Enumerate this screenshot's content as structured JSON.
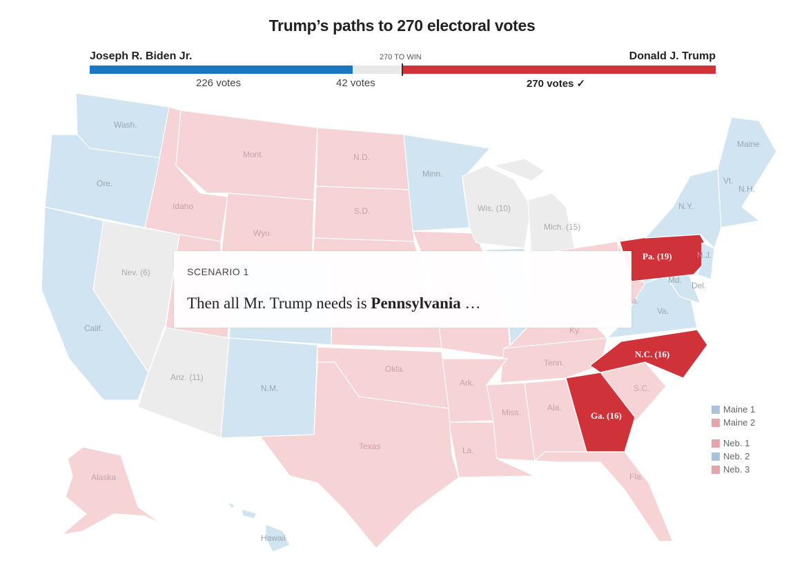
{
  "title": "Trump’s paths to 270 electoral votes",
  "bar": {
    "biden_name": "Joseph R. Biden Jr.",
    "trump_name": "Donald J. Trump",
    "win_label": "270 TO WIN",
    "biden_votes": "226 votes",
    "undecided_votes": "42 votes",
    "trump_votes": "270 votes ✓",
    "biden_count": 226,
    "undecided_count": 42,
    "trump_count": 270,
    "total": 538
  },
  "colors": {
    "biden": "#1a78c2",
    "trump": "#d0323a",
    "undecided": "#e8e8e8",
    "lean_biden": "#d0e4f1",
    "lean_trump": "#f6d4d6",
    "tossup": "#ececec",
    "selected": "#d0323a"
  },
  "card": {
    "label": "SCENARIO 1",
    "text_prefix": "Then all Mr. Trump needs is ",
    "text_bold": "Pennsylvania",
    "text_suffix": " …"
  },
  "states": {
    "wash": "Wash.",
    "ore": "Ore.",
    "calif": "Calif.",
    "nev": "Nev. (6)",
    "idaho": "Idaho",
    "mont": "Mont.",
    "wyo": "Wyo.",
    "nd": "N.D.",
    "sd": "S.D.",
    "minn": "Minn.",
    "wis": "Wis. (10)",
    "mich": "Mich. (15)",
    "maine": "Maine",
    "vt": "Vt.",
    "nh": "N.H.",
    "ny": "N.Y.",
    "pa": "Pa. (19)",
    "nj": "N.J.",
    "md": "Md.",
    "del": "Del.",
    "va": "Va.",
    "wva": "a.",
    "ky": "Ky.",
    "tenn": "Tenn.",
    "nc": "N.C. (16)",
    "sc": "S.C.",
    "ga": "Ga. (16)",
    "ala": "Ala.",
    "miss": "Miss.",
    "ark": "Ark.",
    "la": "La.",
    "texas": "Texas",
    "okla": "Okla.",
    "nm": "N.M.",
    "ariz": "Ariz. (11)",
    "fla": "Fla.",
    "alaska": "Alaska",
    "hawaii": "Hawaii"
  },
  "legend": [
    {
      "label": "Maine 1",
      "party": "biden"
    },
    {
      "label": "Maine 2",
      "party": "trump"
    },
    {
      "label": "Neb. 1",
      "party": "trump"
    },
    {
      "label": "Neb. 2",
      "party": "biden"
    },
    {
      "label": "Neb. 3",
      "party": "trump"
    }
  ]
}
